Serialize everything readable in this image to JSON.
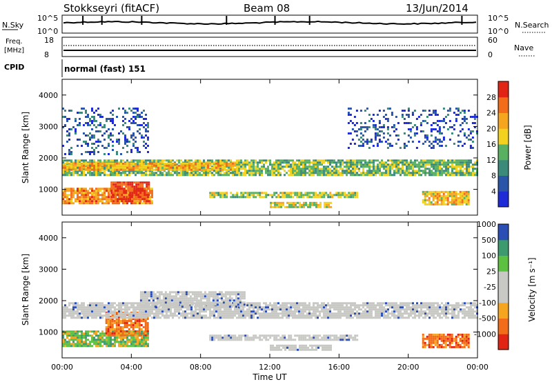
{
  "header": {
    "station": "Stokkseyri (fitACF)",
    "beam": "Beam 08",
    "date": "13/Jun/2014"
  },
  "noise_panel": {
    "left_label": "N.Sky",
    "left_ticks": [
      "10^5",
      "10^0"
    ],
    "right_label": "N.Search",
    "right_ticks": [
      "10^5",
      "10^0"
    ]
  },
  "freq_panel": {
    "left_label_1": "Freq.",
    "left_label_2": "[MHz]",
    "left_ticks": [
      "18",
      "8"
    ],
    "right_label": "Nave",
    "right_ticks": [
      "60",
      "0"
    ]
  },
  "cpid_panel": {
    "label": "CPID",
    "program": "normal (fast) 151"
  },
  "colors": {
    "power_scale": [
      "#1f2bd6",
      "#2a55a8",
      "#3c8a7a",
      "#58b060",
      "#f2d21e",
      "#f5a51e",
      "#f26c1a",
      "#e22414"
    ],
    "velocity_scale": [
      "#e22414",
      "#f26c1a",
      "#f5a51e",
      "#c8c8c4",
      "#c8c8c4",
      "#5cc040",
      "#3d9a6e",
      "#2a4eb4"
    ],
    "ground_scatter": "#c8c8c4"
  },
  "chart_data": [
    {
      "type": "heatmap",
      "name": "power",
      "xlabel": "",
      "ylabel": "Slant Range [km]",
      "x_range_hours": [
        0,
        24
      ],
      "ylim": [
        180,
        4500
      ],
      "yticks": [
        1000,
        2000,
        3000,
        4000
      ],
      "colorbar_label": "Power [dB]",
      "colorbar_ticks": [
        "4",
        "8",
        "12",
        "16",
        "20",
        "24",
        "28"
      ],
      "colorbar_range": [
        0,
        32
      ],
      "regions": [
        {
          "t0": 0.0,
          "t1": 5.2,
          "r0": 550,
          "r1": 1050,
          "level": 24
        },
        {
          "t0": 2.8,
          "t1": 5.0,
          "r0": 650,
          "r1": 1250,
          "level": 29
        },
        {
          "t0": 0.0,
          "t1": 24.0,
          "r0": 1450,
          "r1": 1950,
          "level": 14
        },
        {
          "t0": 0.0,
          "t1": 10.0,
          "r0": 1650,
          "r1": 1850,
          "level": 21
        },
        {
          "t0": 8.5,
          "t1": 17.0,
          "r0": 780,
          "r1": 920,
          "level": 16
        },
        {
          "t0": 12.0,
          "t1": 15.5,
          "r0": 420,
          "r1": 600,
          "level": 18
        },
        {
          "t0": 20.8,
          "t1": 23.5,
          "r0": 500,
          "r1": 950,
          "level": 20
        },
        {
          "t0": 0.0,
          "t1": 5.0,
          "r0": 2100,
          "r1": 3600,
          "level": 6
        },
        {
          "t0": 16.5,
          "t1": 24.0,
          "r0": 2300,
          "r1": 3600,
          "level": 5
        }
      ]
    },
    {
      "type": "heatmap",
      "name": "velocity",
      "xlabel": "Time UT",
      "ylabel": "Slant Range [km]",
      "x_range_hours": [
        0,
        24
      ],
      "xticks": [
        "00:00",
        "04:00",
        "08:00",
        "12:00",
        "16:00",
        "20:00",
        "00:00"
      ],
      "ylim": [
        180,
        4500
      ],
      "yticks": [
        1000,
        2000,
        3000,
        4000
      ],
      "colorbar_label": "Velocity [m s⁻¹]",
      "colorbar_ticks": [
        "-1000",
        "-500",
        "-100",
        "-25",
        "25",
        "100",
        "500",
        "1000"
      ],
      "regions": [
        {
          "t0": 0.0,
          "t1": 5.0,
          "r0": 550,
          "r1": 1050,
          "level": 100
        },
        {
          "t0": 2.5,
          "t1": 5.0,
          "r0": 900,
          "r1": 1650,
          "level": -500
        },
        {
          "t0": 0.0,
          "t1": 24.0,
          "r0": 1450,
          "r1": 1950,
          "level": 0
        },
        {
          "t0": 4.5,
          "t1": 10.5,
          "r0": 1800,
          "r1": 2300,
          "level": 0
        },
        {
          "t0": 8.5,
          "t1": 17.0,
          "r0": 780,
          "r1": 920,
          "level": 0
        },
        {
          "t0": 12.0,
          "t1": 15.5,
          "r0": 420,
          "r1": 600,
          "level": 0
        },
        {
          "t0": 20.8,
          "t1": 23.5,
          "r0": 500,
          "r1": 950,
          "level": -500
        }
      ]
    }
  ]
}
